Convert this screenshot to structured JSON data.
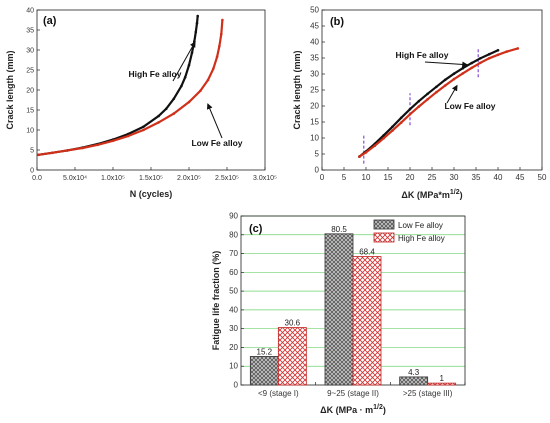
{
  "colors": {
    "high_fe": "#111111",
    "low_fe": "#d0301a",
    "dashed_markers": "#7a3fd0",
    "grid_green": "#6fd26f",
    "bar_low": "#8a8a8a",
    "bar_high": "#d23030"
  },
  "chart_data": [
    {
      "id": "a",
      "type": "line",
      "panel_label": "(a)",
      "xlabel": "N (cycles)",
      "ylabel": "Crack length (mm)",
      "xlim": [
        0,
        300000
      ],
      "ylim": [
        0,
        40
      ],
      "x_ticks": [
        0,
        50000,
        100000,
        150000,
        200000,
        250000,
        300000
      ],
      "x_tick_labels": [
        "0.0",
        "5.0x10⁴",
        "1.0x10⁵",
        "1.5x10⁵",
        "2.0x10⁵",
        "2.5x10⁵",
        "3.0x10⁵"
      ],
      "y_ticks": [
        0,
        5,
        10,
        15,
        20,
        25,
        30,
        35,
        40
      ],
      "y_tick_labels": [
        "0",
        "5",
        "10",
        "15",
        "20",
        "25",
        "30",
        "35",
        "40"
      ],
      "grid": false,
      "series": [
        {
          "name": "High Fe alloy",
          "color": "#111111",
          "x": [
            2000,
            20000,
            40000,
            60000,
            80000,
            100000,
            120000,
            140000,
            160000,
            170000,
            180000,
            190000,
            195000,
            200000,
            204000,
            207000,
            209000,
            210500,
            211500
          ],
          "y": [
            3.8,
            4.3,
            4.9,
            5.6,
            6.5,
            7.6,
            9.0,
            10.8,
            13.5,
            15.3,
            17.8,
            21.0,
            23.2,
            26.2,
            29.3,
            32.1,
            34.5,
            36.7,
            38.5
          ]
        },
        {
          "name": "Low Fe alloy",
          "color": "#d0301a",
          "x": [
            2000,
            20000,
            40000,
            60000,
            80000,
            100000,
            120000,
            140000,
            160000,
            180000,
            200000,
            215000,
            225000,
            232000,
            237000,
            240000,
            242500,
            244000
          ],
          "y": [
            3.8,
            4.3,
            4.9,
            5.5,
            6.3,
            7.3,
            8.5,
            10.0,
            11.9,
            14.1,
            17.0,
            19.8,
            22.5,
            25.3,
            28.3,
            31.0,
            34.0,
            37.5
          ]
        }
      ],
      "annotations": [
        {
          "text": "High Fe alloy",
          "target": [
            208000,
            32
          ]
        },
        {
          "text": "Low Fe alloy",
          "target": [
            230000,
            17
          ]
        }
      ]
    },
    {
      "id": "b",
      "type": "line",
      "panel_label": "(b)",
      "xlabel": "ΔK (MPa*m",
      "xlabel_sup": "1/2",
      "xlabel_end": ")",
      "ylabel": "Crack length (mm)",
      "xlim": [
        0,
        50
      ],
      "ylim": [
        0,
        50
      ],
      "x_ticks": [
        0,
        5,
        10,
        15,
        20,
        25,
        30,
        35,
        40,
        45,
        50
      ],
      "x_tick_labels": [
        "0",
        "5",
        "10",
        "15",
        "20",
        "25",
        "30",
        "35",
        "40",
        "45",
        "50"
      ],
      "y_ticks": [
        0,
        5,
        10,
        15,
        20,
        25,
        30,
        35,
        40,
        45,
        50
      ],
      "y_tick_labels": [
        "0",
        "5",
        "10",
        "15",
        "20",
        "25",
        "30",
        "35",
        "40",
        "45",
        "50"
      ],
      "grid": false,
      "vlines": [
        {
          "x": 9.5,
          "y": [
            2,
            11
          ]
        },
        {
          "x": 20,
          "y": [
            14,
            24
          ]
        },
        {
          "x": 35.5,
          "y": [
            29,
            38
          ]
        }
      ],
      "series": [
        {
          "name": "High Fe alloy",
          "color": "#111111",
          "x": [
            8.5,
            10,
            12,
            14,
            16,
            18,
            20,
            22,
            24,
            26,
            28,
            30,
            32,
            34,
            36,
            38,
            40
          ],
          "y": [
            4.2,
            5.8,
            8.2,
            10.8,
            13.5,
            16.3,
            19.0,
            21.5,
            23.8,
            26.0,
            28.2,
            30.1,
            31.8,
            33.4,
            34.9,
            36.2,
            37.4
          ]
        },
        {
          "name": "Low Fe alloy",
          "color": "#d0301a",
          "x": [
            8.5,
            10,
            12,
            14,
            16,
            18,
            20,
            22,
            24,
            26,
            28,
            30,
            32,
            34,
            36,
            38,
            40,
            42,
            44.5
          ],
          "y": [
            4.2,
            5.5,
            7.6,
            9.9,
            12.3,
            14.8,
            17.4,
            19.8,
            22.1,
            24.3,
            26.4,
            28.4,
            30.2,
            31.9,
            33.5,
            34.9,
            36.0,
            37.0,
            38.0
          ]
        }
      ],
      "annotations": [
        {
          "text": "High Fe alloy",
          "target": [
            33,
            33.5
          ]
        },
        {
          "text": "Low Fe alloy",
          "target": [
            30,
            27
          ]
        }
      ]
    },
    {
      "id": "c",
      "type": "bar",
      "panel_label": "(c)",
      "xlabel": "ΔK (MPa · m",
      "xlabel_sup": "1/2",
      "xlabel_end": ")",
      "ylabel": "Fatigue life fraction (%)",
      "ylim": [
        0,
        90
      ],
      "y_ticks": [
        0,
        10,
        20,
        30,
        40,
        50,
        60,
        70,
        80,
        90
      ],
      "y_tick_labels": [
        "0",
        "10",
        "20",
        "30",
        "40",
        "50",
        "60",
        "70",
        "80",
        "90"
      ],
      "grid": true,
      "legend": "top-right",
      "categories": [
        "<9 (stage I)",
        "9~25 (stage II)",
        ">25 (stage III)"
      ],
      "series": [
        {
          "name": "Low Fe alloy",
          "values": [
            15.2,
            80.5,
            4.3
          ],
          "labels": [
            "15.2",
            "80.5",
            "4.3"
          ],
          "color": "#8a8a8a"
        },
        {
          "name": "High Fe alloy",
          "values": [
            30.6,
            68.4,
            1
          ],
          "labels": [
            "30.6",
            "68.4",
            "1"
          ],
          "color": "#d23030"
        }
      ]
    }
  ]
}
